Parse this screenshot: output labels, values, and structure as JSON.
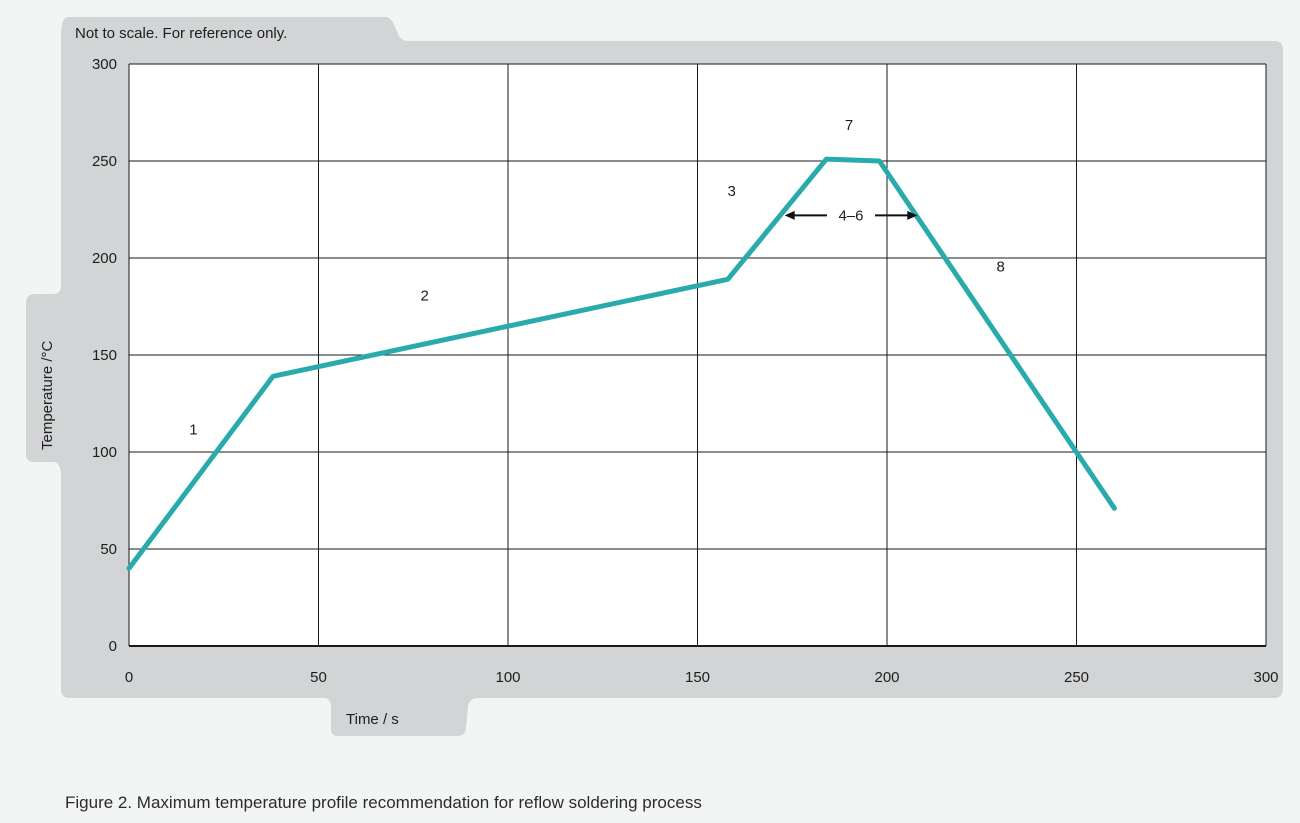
{
  "chart_data": {
    "type": "line",
    "note": "Not to scale. For reference only.",
    "xlabel": "Time / s",
    "ylabel": "Temperature /°C",
    "xlim": [
      0,
      300
    ],
    "ylim": [
      0,
      300
    ],
    "xticks": [
      "0",
      "50",
      "100",
      "150",
      "200",
      "250",
      "300"
    ],
    "yticks": [
      "0",
      "50",
      "100",
      "150",
      "200",
      "250",
      "300"
    ],
    "grid": true,
    "line_color": "#2aabab",
    "series": [
      {
        "x": [
          0,
          38,
          158,
          184,
          198,
          260
        ],
        "y": [
          40,
          139,
          189,
          251,
          250,
          71
        ]
      }
    ],
    "annotations": [
      {
        "text": "1",
        "x": 17,
        "y": 109
      },
      {
        "text": "2",
        "x": 78,
        "y": 178
      },
      {
        "text": "3",
        "x": 159,
        "y": 232
      },
      {
        "text": "7",
        "x": 190,
        "y": 266
      },
      {
        "text": "8",
        "x": 230,
        "y": 193
      }
    ],
    "span_annotation": {
      "text": "4–6",
      "x_start": 173,
      "x_end": 208,
      "y": 222
    }
  },
  "caption": "Figure 2. Maximum temperature profile recommendation for reflow soldering process"
}
